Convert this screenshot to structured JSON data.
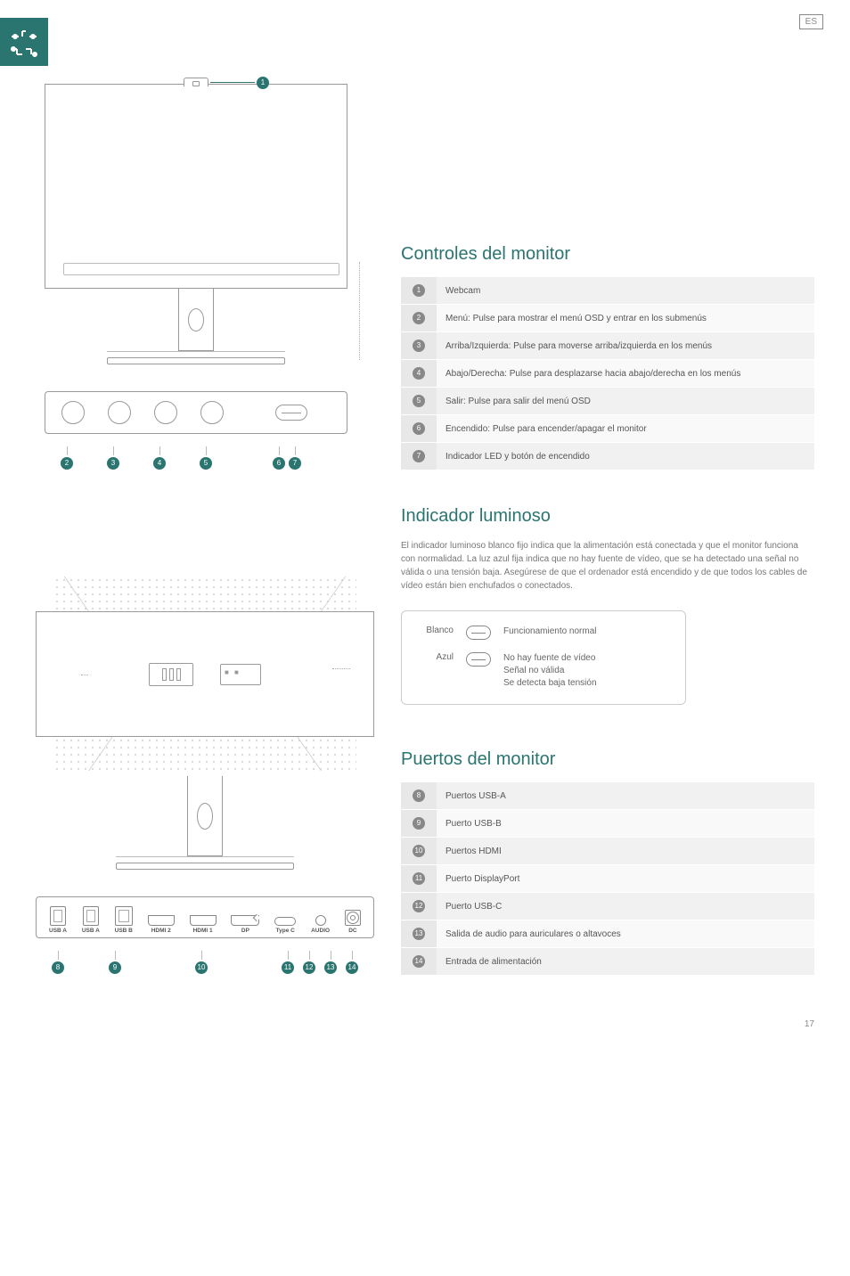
{
  "page": {
    "language_badge": "ES",
    "number": "17"
  },
  "colors": {
    "accent": "#2a7570",
    "badge_gray": "#888888"
  },
  "sections": {
    "controls": {
      "title": "Controles del monitor",
      "rows": [
        {
          "num": "1",
          "desc": "Webcam"
        },
        {
          "num": "2",
          "desc": "Menú: Pulse para mostrar el menú OSD y entrar en los submenús"
        },
        {
          "num": "3",
          "desc": "Arriba/Izquierda: Pulse para moverse arriba/izquierda en los menús"
        },
        {
          "num": "4",
          "desc": "Abajo/Derecha: Pulse para desplazarse hacia abajo/derecha en los menús"
        },
        {
          "num": "5",
          "desc": "Salir: Pulse para salir del menú OSD"
        },
        {
          "num": "6",
          "desc": "Encendido: Pulse para encender/apagar el monitor"
        },
        {
          "num": "7",
          "desc": "Indicador LED y botón de encendido"
        }
      ]
    },
    "indicator": {
      "title": "Indicador luminoso",
      "paragraph": "El indicador luminoso blanco fijo indica que la alimentación está conectada y que el monitor funciona con normalidad. La luz azul fija indica que no hay fuente de vídeo, que se ha detectado una señal no válida o una tensión baja. Asegúrese de que el ordenador está encendido y de que todos los cables de vídeo están bien enchufados o conectados.",
      "states": [
        {
          "color_label": "Blanco",
          "desc": "Funcionamiento normal"
        },
        {
          "color_label": "Azul",
          "desc": "No hay fuente de vídeo\nSeñal no válida\nSe detecta baja tensión"
        }
      ]
    },
    "ports": {
      "title": "Puertos del monitor",
      "rows": [
        {
          "num": "8",
          "desc": "Puertos USB-A"
        },
        {
          "num": "9",
          "desc": "Puerto USB-B"
        },
        {
          "num": "10",
          "desc": "Puertos HDMI"
        },
        {
          "num": "11",
          "desc": "Puerto DisplayPort"
        },
        {
          "num": "12",
          "desc": "Puerto USB-C"
        },
        {
          "num": "13",
          "desc": "Salida de audio para auriculares o altavoces"
        },
        {
          "num": "14",
          "desc": "Entrada de alimentación"
        }
      ],
      "labels": {
        "usb_a": "USB A",
        "usb_b": "USB B",
        "hdmi2": "HDMI 2",
        "hdmi1": "HDMI 1",
        "dp": "DP",
        "typec": "Type C",
        "audio": "AUDIO",
        "dc": "DC"
      }
    }
  },
  "diagram_front": {
    "callouts": [
      "1",
      "2",
      "3",
      "4",
      "5",
      "6",
      "7"
    ]
  },
  "diagram_ports": {
    "callouts": [
      "8",
      "9",
      "10",
      "11",
      "12",
      "13",
      "14"
    ]
  }
}
